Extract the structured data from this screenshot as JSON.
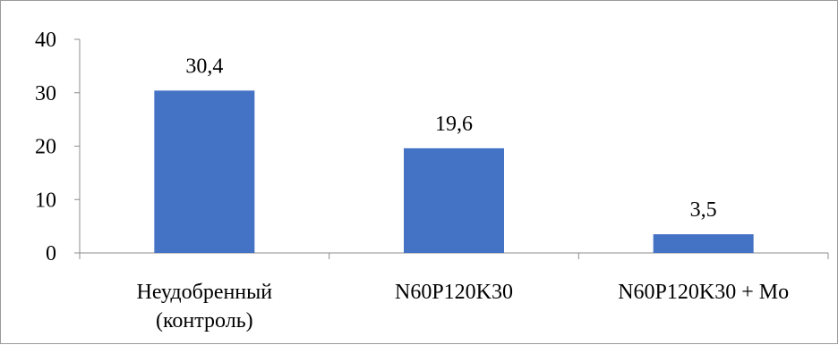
{
  "chart_data": {
    "type": "bar",
    "title": "",
    "xlabel": "",
    "ylabel": "",
    "ylim": [
      0,
      40
    ],
    "yticks": [
      0,
      10,
      20,
      30,
      40
    ],
    "categories": [
      [
        "Неудобренный",
        "(контроль)"
      ],
      [
        "N60P120K30"
      ],
      [
        "N60P120K30 + Mo"
      ]
    ],
    "values": [
      30.4,
      19.6,
      3.5
    ],
    "value_labels": [
      "30,4",
      "19,6",
      "3,5"
    ],
    "bar_color": "#4472C4",
    "grid": false,
    "legend": "none"
  }
}
